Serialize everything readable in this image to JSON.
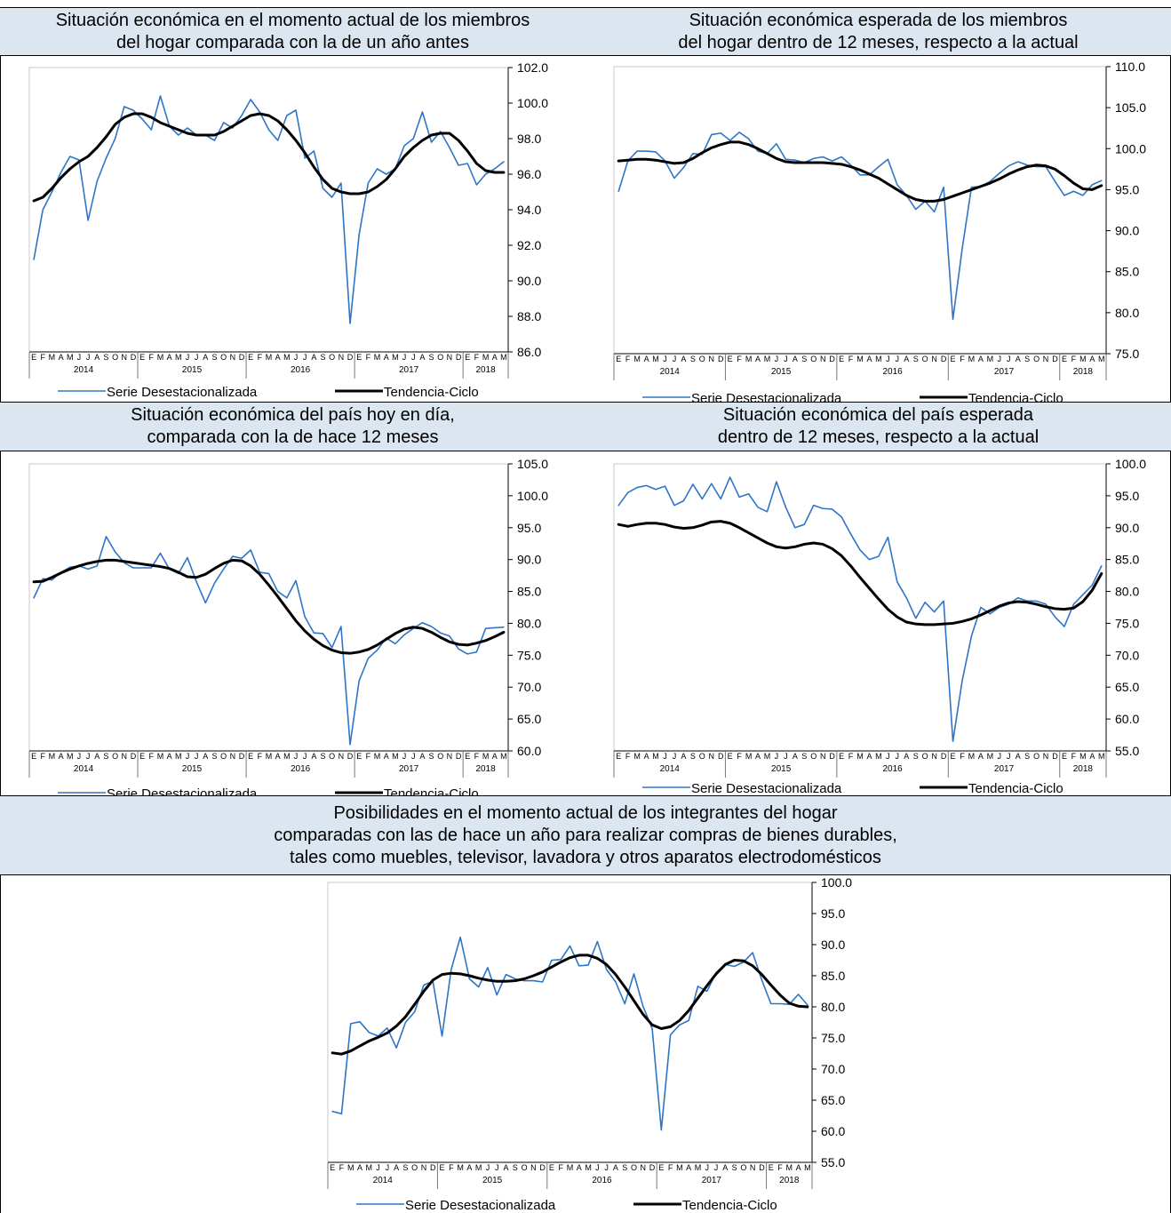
{
  "chart_data": [
    {
      "type": "line",
      "title": "Situación económica en el momento actual de los miembros\ndel hogar comparada con la de un año antes",
      "categories": [
        "E",
        "F",
        "M",
        "A",
        "M",
        "J",
        "J",
        "A",
        "S",
        "O",
        "N",
        "D",
        "E",
        "F",
        "M",
        "A",
        "M",
        "J",
        "J",
        "A",
        "S",
        "O",
        "N",
        "D",
        "E",
        "F",
        "M",
        "A",
        "M",
        "J",
        "J",
        "A",
        "S",
        "O",
        "N",
        "D",
        "E",
        "F",
        "M",
        "A",
        "M",
        "J",
        "J",
        "A",
        "S",
        "O",
        "N",
        "D",
        "E",
        "F",
        "M",
        "A",
        "M"
      ],
      "years": [
        "2014",
        "2015",
        "2016",
        "2017",
        "2018"
      ],
      "ylim": [
        86,
        102
      ],
      "yticks": [
        {
          "value": 86,
          "label": "86.0"
        },
        {
          "value": 88,
          "label": "88.0"
        },
        {
          "value": 90,
          "label": "90.0"
        },
        {
          "value": 92,
          "label": "92.0"
        },
        {
          "value": 94,
          "label": "94.0"
        },
        {
          "value": 96,
          "label": "96.0"
        },
        {
          "value": 98,
          "label": "98.0"
        },
        {
          "value": 100,
          "label": "100.0"
        },
        {
          "value": 102,
          "label": "102.0"
        }
      ],
      "series": [
        {
          "name": "Serie Desestacionalizada",
          "color": "#2e75c6",
          "values": [
            91.2,
            94.0,
            95.0,
            96.1,
            97.0,
            96.8,
            93.4,
            95.6,
            96.9,
            98.0,
            99.8,
            99.6,
            99.1,
            98.5,
            100.4,
            98.7,
            98.2,
            98.6,
            98.2,
            98.2,
            97.9,
            98.9,
            98.6,
            99.3,
            100.2,
            99.5,
            98.5,
            97.9,
            99.3,
            99.6,
            96.9,
            97.3,
            95.2,
            94.7,
            95.5,
            87.6,
            92.6,
            95.5,
            96.3,
            96.0,
            96.3,
            97.6,
            98.0,
            99.5,
            97.8,
            98.4,
            97.5,
            96.5,
            96.6,
            95.4,
            96.0,
            96.3,
            96.7
          ]
        },
        {
          "name": "Tendencia-Ciclo",
          "color": "#000000",
          "values": [
            94.5,
            94.7,
            95.2,
            95.8,
            96.3,
            96.7,
            97.0,
            97.5,
            98.1,
            98.8,
            99.2,
            99.4,
            99.4,
            99.2,
            98.9,
            98.7,
            98.5,
            98.3,
            98.2,
            98.2,
            98.2,
            98.4,
            98.7,
            99.0,
            99.3,
            99.4,
            99.3,
            99.0,
            98.5,
            97.9,
            97.2,
            96.4,
            95.7,
            95.2,
            95.0,
            94.9,
            94.9,
            95.0,
            95.3,
            95.7,
            96.3,
            97.0,
            97.5,
            97.9,
            98.2,
            98.3,
            98.3,
            97.9,
            97.3,
            96.6,
            96.2,
            96.1,
            96.1
          ]
        }
      ]
    },
    {
      "type": "line",
      "title": "Situación económica esperada de los miembros\ndel hogar dentro de 12 meses, respecto a la actual",
      "categories": [
        "E",
        "F",
        "M",
        "A",
        "M",
        "J",
        "J",
        "A",
        "S",
        "O",
        "N",
        "D",
        "E",
        "F",
        "M",
        "A",
        "M",
        "J",
        "J",
        "A",
        "S",
        "O",
        "N",
        "D",
        "E",
        "F",
        "M",
        "A",
        "M",
        "J",
        "J",
        "A",
        "S",
        "O",
        "N",
        "D",
        "E",
        "F",
        "M",
        "A",
        "M",
        "J",
        "J",
        "A",
        "S",
        "O",
        "N",
        "D",
        "E",
        "F",
        "M",
        "A",
        "M"
      ],
      "years": [
        "2014",
        "2015",
        "2016",
        "2017",
        "2018"
      ],
      "ylim": [
        75,
        110
      ],
      "yticks": [
        {
          "value": 75,
          "label": "75.0"
        },
        {
          "value": 80,
          "label": "80.0"
        },
        {
          "value": 85,
          "label": "85.0"
        },
        {
          "value": 90,
          "label": "90.0"
        },
        {
          "value": 95,
          "label": "95.0"
        },
        {
          "value": 100,
          "label": "100.0"
        },
        {
          "value": 105,
          "label": "105.0"
        },
        {
          "value": 110,
          "label": "110.0"
        }
      ],
      "series": [
        {
          "name": "Serie Desestacionalizada",
          "color": "#2e75c6",
          "values": [
            94.8,
            98.5,
            99.7,
            99.7,
            99.6,
            98.5,
            96.4,
            97.7,
            99.4,
            99.3,
            101.7,
            101.9,
            101.0,
            102.0,
            101.2,
            99.7,
            99.4,
            100.6,
            98.7,
            98.6,
            98.3,
            98.8,
            99.0,
            98.5,
            99.0,
            98.0,
            96.8,
            96.8,
            97.8,
            98.7,
            95.6,
            94.3,
            92.6,
            93.6,
            92.3,
            95.3,
            79.2,
            87.8,
            95.3,
            95.4,
            96.0,
            97.0,
            97.9,
            98.4,
            98.0,
            97.8,
            97.8,
            96.0,
            94.3,
            94.8,
            94.3,
            95.6,
            96.1
          ]
        },
        {
          "name": "Tendencia-Ciclo",
          "color": "#000000",
          "values": [
            98.5,
            98.6,
            98.7,
            98.7,
            98.6,
            98.4,
            98.2,
            98.3,
            98.8,
            99.5,
            100.1,
            100.5,
            100.8,
            100.8,
            100.5,
            100.0,
            99.4,
            98.8,
            98.4,
            98.3,
            98.3,
            98.3,
            98.3,
            98.2,
            98.1,
            97.8,
            97.4,
            96.9,
            96.4,
            95.7,
            95.0,
            94.3,
            93.8,
            93.6,
            93.6,
            93.8,
            94.2,
            94.6,
            95.0,
            95.4,
            95.8,
            96.3,
            96.9,
            97.4,
            97.8,
            98.0,
            97.9,
            97.5,
            96.7,
            95.8,
            95.1,
            95.0,
            95.5
          ]
        }
      ]
    },
    {
      "type": "line",
      "title": "Situación económica del país hoy en día,\ncomparada con la de hace 12 meses",
      "categories": [
        "E",
        "F",
        "M",
        "A",
        "M",
        "J",
        "J",
        "A",
        "S",
        "O",
        "N",
        "D",
        "E",
        "F",
        "M",
        "A",
        "M",
        "J",
        "J",
        "A",
        "S",
        "O",
        "N",
        "D",
        "E",
        "F",
        "M",
        "A",
        "M",
        "J",
        "J",
        "A",
        "S",
        "O",
        "N",
        "D",
        "E",
        "F",
        "M",
        "A",
        "M",
        "J",
        "J",
        "A",
        "S",
        "O",
        "N",
        "D",
        "E",
        "F",
        "M",
        "A",
        "M"
      ],
      "years": [
        "2014",
        "2015",
        "2016",
        "2017",
        "2018"
      ],
      "ylim": [
        60,
        105
      ],
      "yticks": [
        {
          "value": 60,
          "label": "60.0"
        },
        {
          "value": 65,
          "label": "65.0"
        },
        {
          "value": 70,
          "label": "70.0"
        },
        {
          "value": 75,
          "label": "75.0"
        },
        {
          "value": 80,
          "label": "80.0"
        },
        {
          "value": 85,
          "label": "85.0"
        },
        {
          "value": 90,
          "label": "90.0"
        },
        {
          "value": 95,
          "label": "95.0"
        },
        {
          "value": 100,
          "label": "100.0"
        },
        {
          "value": 105,
          "label": "105.0"
        }
      ],
      "series": [
        {
          "name": "Serie Desestacionalizada",
          "color": "#2e75c6",
          "values": [
            84.0,
            87.0,
            86.8,
            88.0,
            88.8,
            89.0,
            88.5,
            89.0,
            93.6,
            91.2,
            89.5,
            88.7,
            88.7,
            88.7,
            91.0,
            88.5,
            87.8,
            90.3,
            86.5,
            83.2,
            86.3,
            88.5,
            90.5,
            90.2,
            91.5,
            88.0,
            87.8,
            85.0,
            84.0,
            86.7,
            81.0,
            78.5,
            78.4,
            76.2,
            79.5,
            61.0,
            71.0,
            74.5,
            75.8,
            77.7,
            76.8,
            78.2,
            79.2,
            80.1,
            79.5,
            78.5,
            78.0,
            76.0,
            75.2,
            75.5,
            79.2,
            79.3,
            79.4
          ]
        },
        {
          "name": "Tendencia-Ciclo",
          "color": "#000000",
          "values": [
            86.5,
            86.6,
            87.2,
            87.9,
            88.5,
            89.0,
            89.4,
            89.7,
            89.9,
            89.9,
            89.7,
            89.5,
            89.3,
            89.1,
            88.9,
            88.6,
            88.0,
            87.3,
            87.2,
            87.7,
            88.6,
            89.4,
            89.9,
            89.8,
            89.0,
            87.7,
            86.0,
            84.2,
            82.3,
            80.4,
            78.8,
            77.5,
            76.5,
            75.8,
            75.4,
            75.3,
            75.5,
            75.9,
            76.6,
            77.5,
            78.4,
            79.1,
            79.4,
            79.2,
            78.6,
            77.8,
            77.1,
            76.7,
            76.6,
            76.9,
            77.3,
            77.9,
            78.6
          ]
        }
      ]
    },
    {
      "type": "line",
      "title": "Situación económica del país esperada\ndentro de 12 meses, respecto a la actual",
      "categories": [
        "E",
        "F",
        "M",
        "A",
        "M",
        "J",
        "J",
        "A",
        "S",
        "O",
        "N",
        "D",
        "E",
        "F",
        "M",
        "A",
        "M",
        "J",
        "J",
        "A",
        "S",
        "O",
        "N",
        "D",
        "E",
        "F",
        "M",
        "A",
        "M",
        "J",
        "J",
        "A",
        "S",
        "O",
        "N",
        "D",
        "E",
        "F",
        "M",
        "A",
        "M",
        "J",
        "J",
        "A",
        "S",
        "O",
        "N",
        "D",
        "E",
        "F",
        "M",
        "A",
        "M"
      ],
      "years": [
        "2014",
        "2015",
        "2016",
        "2017",
        "2018"
      ],
      "ylim": [
        55,
        100
      ],
      "yticks": [
        {
          "value": 55,
          "label": "55.0"
        },
        {
          "value": 60,
          "label": "60.0"
        },
        {
          "value": 65,
          "label": "65.0"
        },
        {
          "value": 70,
          "label": "70.0"
        },
        {
          "value": 75,
          "label": "75.0"
        },
        {
          "value": 80,
          "label": "80.0"
        },
        {
          "value": 85,
          "label": "85.0"
        },
        {
          "value": 90,
          "label": "90.0"
        },
        {
          "value": 95,
          "label": "95.0"
        },
        {
          "value": 100,
          "label": "100.0"
        }
      ],
      "series": [
        {
          "name": "Serie Desestacionalizada",
          "color": "#2e75c6",
          "values": [
            93.5,
            95.5,
            96.3,
            96.6,
            96.0,
            96.5,
            93.5,
            94.2,
            96.8,
            94.5,
            96.9,
            94.5,
            97.9,
            94.8,
            95.3,
            93.2,
            92.5,
            97.2,
            93.2,
            90.0,
            90.5,
            93.5,
            93.0,
            92.9,
            91.7,
            89.0,
            86.5,
            85.0,
            85.5,
            88.5,
            81.5,
            79.0,
            75.8,
            78.3,
            76.8,
            78.5,
            56.5,
            66.0,
            73.0,
            77.5,
            76.5,
            77.5,
            78.0,
            79.0,
            78.5,
            78.5,
            78.0,
            76.0,
            74.5,
            78.0,
            79.5,
            81.0,
            84.0
          ]
        },
        {
          "name": "Tendencia-Ciclo",
          "color": "#000000",
          "values": [
            90.5,
            90.2,
            90.5,
            90.7,
            90.7,
            90.5,
            90.1,
            89.9,
            90.0,
            90.4,
            90.9,
            91.0,
            90.7,
            90.0,
            89.2,
            88.4,
            87.6,
            87.0,
            86.8,
            87.0,
            87.4,
            87.6,
            87.4,
            86.7,
            85.6,
            84.0,
            82.2,
            80.5,
            78.8,
            77.2,
            76.0,
            75.2,
            74.9,
            74.8,
            74.8,
            74.9,
            75.0,
            75.3,
            75.7,
            76.3,
            77.0,
            77.7,
            78.2,
            78.4,
            78.3,
            78.0,
            77.6,
            77.3,
            77.2,
            77.4,
            78.4,
            80.2,
            82.8
          ]
        }
      ]
    },
    {
      "type": "line",
      "title": "Posibilidades en el momento actual de los integrantes del hogar\ncomparadas con las de hace un año para realizar compras de bienes durables,\ntales como muebles, televisor, lavadora y otros aparatos electrodomésticos",
      "categories": [
        "E",
        "F",
        "M",
        "A",
        "M",
        "J",
        "J",
        "A",
        "S",
        "O",
        "N",
        "D",
        "E",
        "F",
        "M",
        "A",
        "M",
        "J",
        "J",
        "A",
        "S",
        "O",
        "N",
        "D",
        "E",
        "F",
        "M",
        "A",
        "M",
        "J",
        "J",
        "A",
        "S",
        "O",
        "N",
        "D",
        "E",
        "F",
        "M",
        "A",
        "M",
        "J",
        "J",
        "A",
        "S",
        "O",
        "N",
        "D",
        "E",
        "F",
        "M",
        "A",
        "M"
      ],
      "years": [
        "2014",
        "2015",
        "2016",
        "2017",
        "2018"
      ],
      "ylim": [
        55,
        100
      ],
      "yticks": [
        {
          "value": 55,
          "label": "55.0"
        },
        {
          "value": 60,
          "label": "60.0"
        },
        {
          "value": 65,
          "label": "65.0"
        },
        {
          "value": 70,
          "label": "70.0"
        },
        {
          "value": 75,
          "label": "75.0"
        },
        {
          "value": 80,
          "label": "80.0"
        },
        {
          "value": 85,
          "label": "85.0"
        },
        {
          "value": 90,
          "label": "90.0"
        },
        {
          "value": 95,
          "label": "95.0"
        },
        {
          "value": 100,
          "label": "100.0"
        }
      ],
      "series": [
        {
          "name": "Serie Desestacionalizada",
          "color": "#2e75c6",
          "values": [
            63.2,
            62.8,
            77.3,
            77.6,
            75.9,
            75.3,
            76.6,
            73.4,
            77.5,
            79.2,
            83.5,
            84.1,
            75.3,
            86.0,
            91.2,
            84.5,
            83.2,
            86.3,
            81.9,
            85.2,
            84.5,
            84.2,
            84.2,
            84.0,
            87.5,
            87.6,
            89.8,
            86.6,
            86.7,
            90.5,
            86.0,
            84.0,
            80.5,
            85.3,
            80.1,
            76.5,
            60.2,
            75.5,
            77.1,
            77.8,
            83.3,
            82.5,
            85.5,
            86.8,
            86.5,
            87.2,
            88.7,
            84.3,
            80.5,
            80.5,
            80.4,
            82.0,
            80.3
          ]
        },
        {
          "name": "Tendencia-Ciclo",
          "color": "#000000",
          "values": [
            72.6,
            72.4,
            72.9,
            73.7,
            74.5,
            75.1,
            75.8,
            76.9,
            78.4,
            80.4,
            82.5,
            84.3,
            85.2,
            85.4,
            85.3,
            85.0,
            84.6,
            84.3,
            84.1,
            84.1,
            84.2,
            84.5,
            85.0,
            85.6,
            86.4,
            87.2,
            87.9,
            88.3,
            88.3,
            87.8,
            86.8,
            85.2,
            83.2,
            81.0,
            78.8,
            77.1,
            76.5,
            76.8,
            77.8,
            79.4,
            81.4,
            83.4,
            85.3,
            86.8,
            87.5,
            87.4,
            86.6,
            85.2,
            83.5,
            81.9,
            80.6,
            80.1,
            80.0
          ]
        }
      ]
    }
  ]
}
